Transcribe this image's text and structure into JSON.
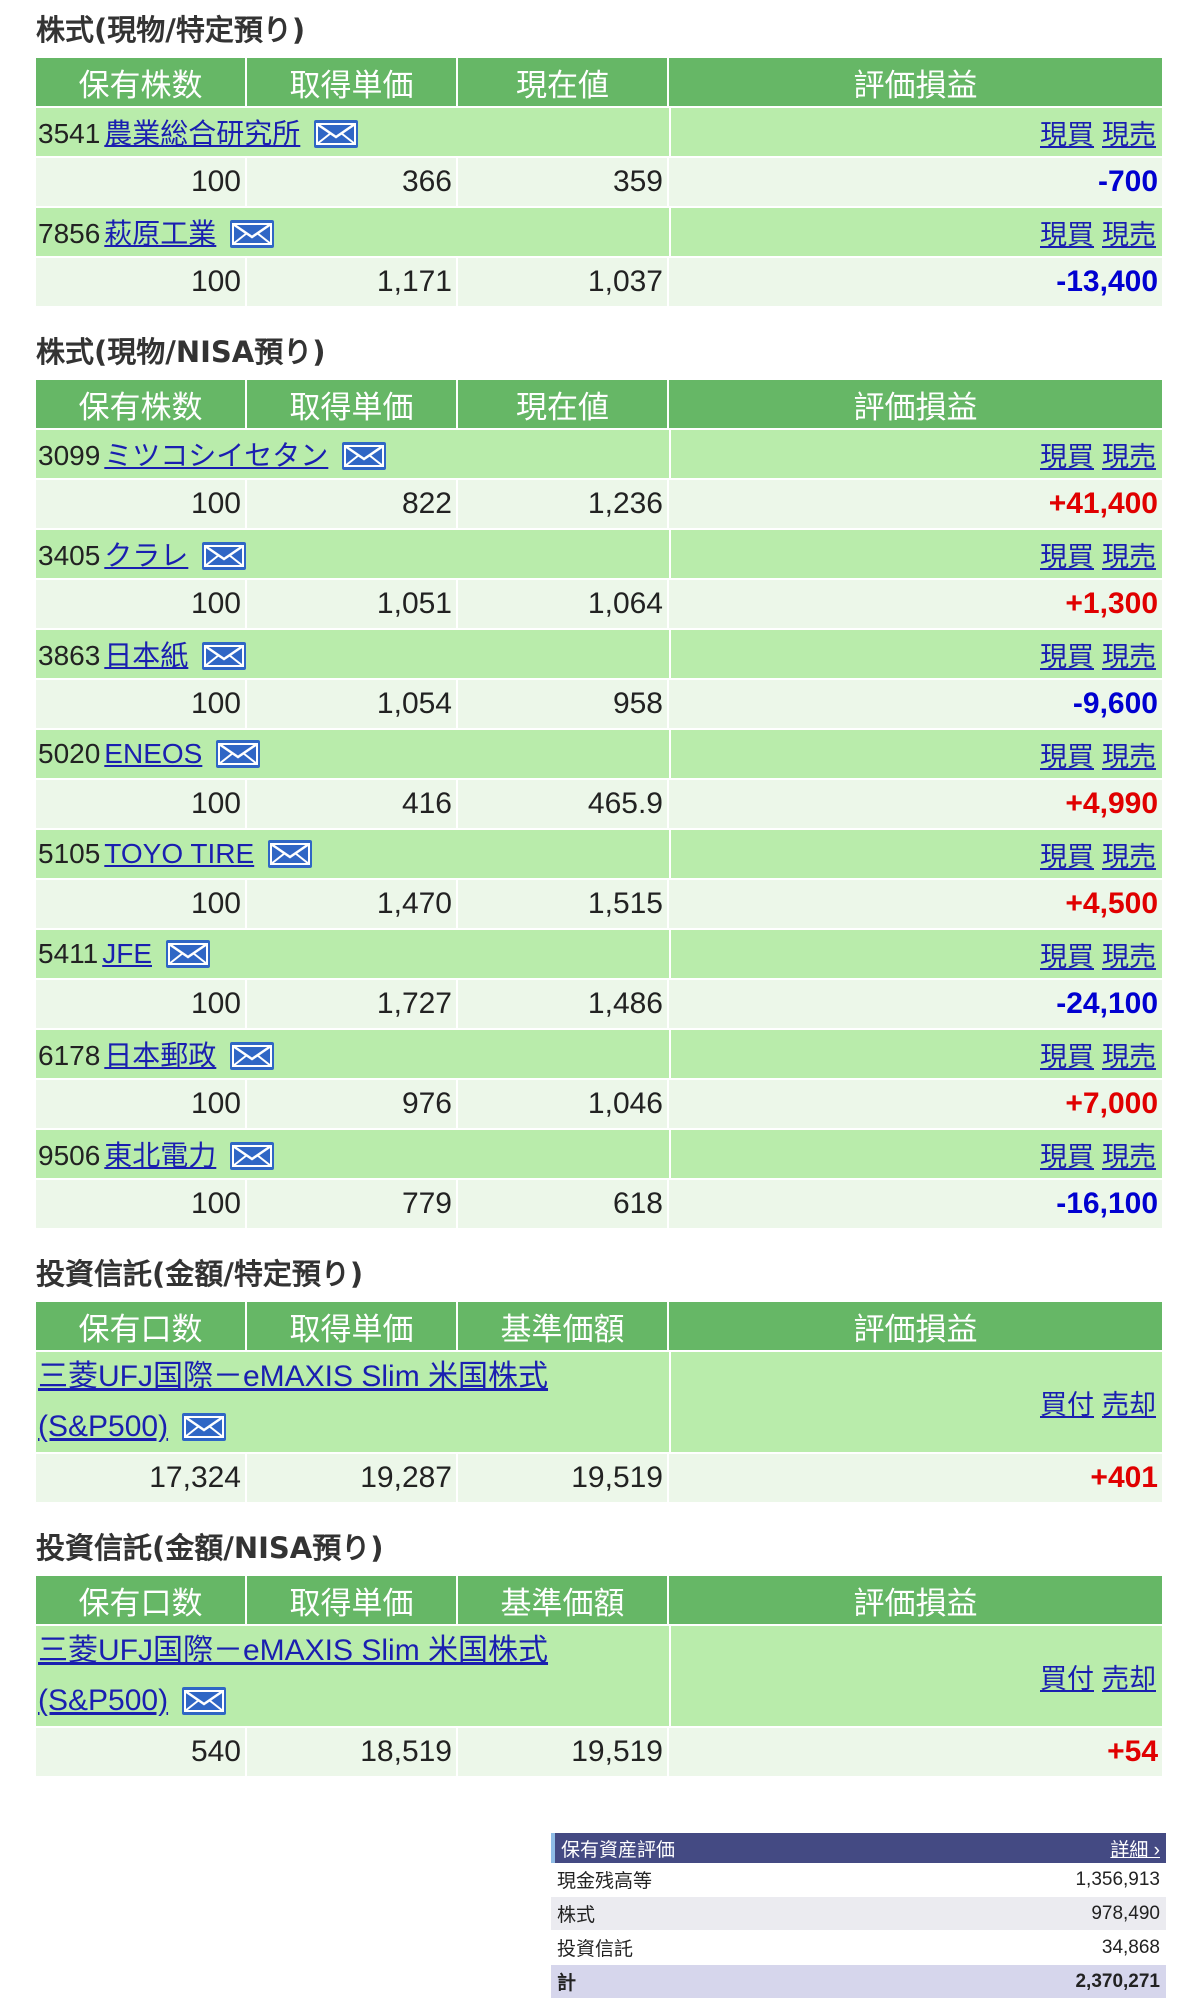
{
  "sections": [
    {
      "title": "株式(現物/特定預り)",
      "headers": [
        "保有株数",
        "取得単価",
        "現在値",
        "評価損益"
      ],
      "kind": "stock",
      "rows": [
        {
          "code": "3541",
          "name": "農業総合研究所",
          "qty": "100",
          "cost": "366",
          "price": "359",
          "pl": "-700",
          "sign": "neg",
          "act1": "現買",
          "act2": "現売"
        },
        {
          "code": "7856",
          "name": "萩原工業",
          "qty": "100",
          "cost": "1,171",
          "price": "1,037",
          "pl": "-13,400",
          "sign": "neg",
          "act1": "現買",
          "act2": "現売"
        }
      ]
    },
    {
      "title": "株式(現物/NISA預り)",
      "headers": [
        "保有株数",
        "取得単価",
        "現在値",
        "評価損益"
      ],
      "kind": "stock",
      "rows": [
        {
          "code": "3099",
          "name": "ミツコシイセタン",
          "qty": "100",
          "cost": "822",
          "price": "1,236",
          "pl": "+41,400",
          "sign": "pos",
          "act1": "現買",
          "act2": "現売"
        },
        {
          "code": "3405",
          "name": "クラレ",
          "qty": "100",
          "cost": "1,051",
          "price": "1,064",
          "pl": "+1,300",
          "sign": "pos",
          "act1": "現買",
          "act2": "現売"
        },
        {
          "code": "3863",
          "name": "日本紙",
          "qty": "100",
          "cost": "1,054",
          "price": "958",
          "pl": "-9,600",
          "sign": "neg",
          "act1": "現買",
          "act2": "現売"
        },
        {
          "code": "5020",
          "name": "ENEOS",
          "qty": "100",
          "cost": "416",
          "price": "465.9",
          "pl": "+4,990",
          "sign": "pos",
          "act1": "現買",
          "act2": "現売"
        },
        {
          "code": "5105",
          "name": "TOYO TIRE",
          "qty": "100",
          "cost": "1,470",
          "price": "1,515",
          "pl": "+4,500",
          "sign": "pos",
          "act1": "現買",
          "act2": "現売"
        },
        {
          "code": "5411",
          "name": "JFE",
          "qty": "100",
          "cost": "1,727",
          "price": "1,486",
          "pl": "-24,100",
          "sign": "neg",
          "act1": "現買",
          "act2": "現売"
        },
        {
          "code": "6178",
          "name": "日本郵政",
          "qty": "100",
          "cost": "976",
          "price": "1,046",
          "pl": "+7,000",
          "sign": "pos",
          "act1": "現買",
          "act2": "現売"
        },
        {
          "code": "9506",
          "name": "東北電力",
          "qty": "100",
          "cost": "779",
          "price": "618",
          "pl": "-16,100",
          "sign": "neg",
          "act1": "現買",
          "act2": "現売"
        }
      ]
    },
    {
      "title": "投資信託(金額/特定預り)",
      "headers": [
        "保有口数",
        "取得単価",
        "基準価額",
        "評価損益"
      ],
      "kind": "fund",
      "rows": [
        {
          "name": "三菱UFJ国際－eMAXIS Slim 米国株式(S&P500)",
          "qty": "17,324",
          "cost": "19,287",
          "price": "19,519",
          "pl": "+401",
          "sign": "pos",
          "act1": "買付",
          "act2": "売却"
        }
      ]
    },
    {
      "title": "投資信託(金額/NISA預り)",
      "headers": [
        "保有口数",
        "取得単価",
        "基準価額",
        "評価損益"
      ],
      "kind": "fund",
      "rows": [
        {
          "name": "三菱UFJ国際－eMAXIS Slim 米国株式(S&P500)",
          "qty": "540",
          "cost": "18,519",
          "price": "19,519",
          "pl": "+54",
          "sign": "pos",
          "act1": "買付",
          "act2": "売却"
        }
      ]
    }
  ],
  "summary": {
    "title": "保有資産評価",
    "detail": "詳細 ›",
    "rows": [
      {
        "label": "現金残高等",
        "value": "1,356,913"
      },
      {
        "label": "株式",
        "value": "978,490"
      },
      {
        "label": "投資信託",
        "value": "34,868"
      }
    ],
    "total": {
      "label": "計",
      "value": "2,370,271"
    }
  },
  "colors": {
    "header": "#66b766",
    "name_row": "#b9ecab",
    "num_row": "#ecf7e9",
    "positive": "#e00000",
    "negative": "#0000d0",
    "link": "#1a1fb0",
    "mail_icon": "#2f66c5"
  },
  "icons": {
    "mail": "mail-icon"
  }
}
